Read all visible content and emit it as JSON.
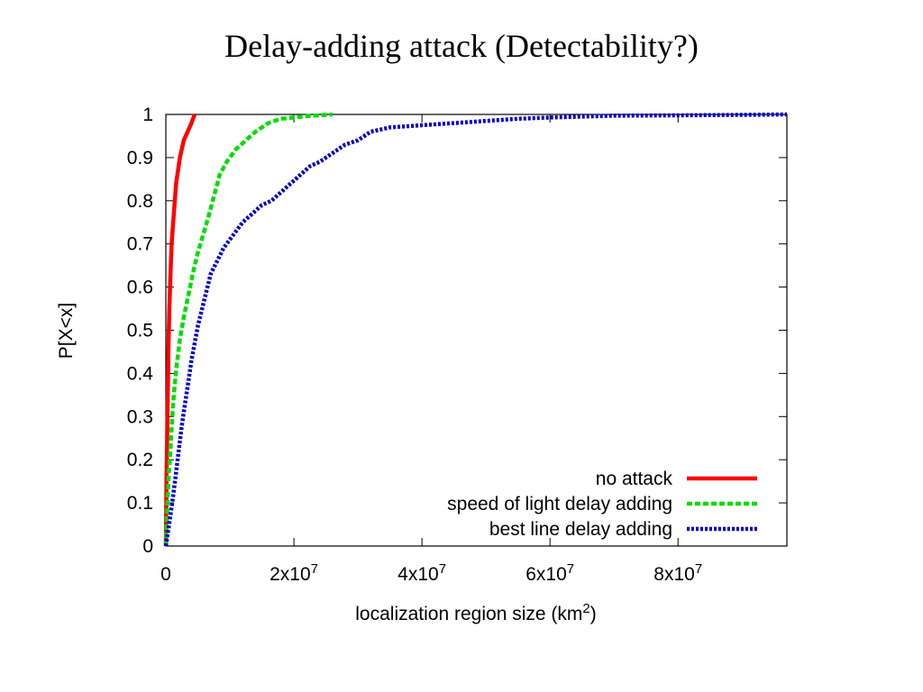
{
  "slide": {
    "title": "Delay-adding attack (Detectability?)"
  },
  "chart_data": {
    "type": "line",
    "title": "",
    "xlabel": "localization region size (km",
    "xlabel_sup": "2",
    "xlabel_tail": ")",
    "ylabel": "P[X<x]",
    "xlim": [
      0,
      97000000
    ],
    "ylim": [
      0,
      1
    ],
    "x_ticks": [
      {
        "value": 0,
        "base": "0",
        "exp": ""
      },
      {
        "value": 20000000,
        "base": "2x10",
        "exp": "7"
      },
      {
        "value": 40000000,
        "base": "4x10",
        "exp": "7"
      },
      {
        "value": 60000000,
        "base": "6x10",
        "exp": "7"
      },
      {
        "value": 80000000,
        "base": "8x10",
        "exp": "7"
      }
    ],
    "y_ticks": [
      {
        "value": 0,
        "label": "0"
      },
      {
        "value": 0.1,
        "label": "0.1"
      },
      {
        "value": 0.2,
        "label": "0.2"
      },
      {
        "value": 0.3,
        "label": "0.3"
      },
      {
        "value": 0.4,
        "label": "0.4"
      },
      {
        "value": 0.5,
        "label": "0.5"
      },
      {
        "value": 0.6,
        "label": "0.6"
      },
      {
        "value": 0.7,
        "label": "0.7"
      },
      {
        "value": 0.8,
        "label": "0.8"
      },
      {
        "value": 0.9,
        "label": "0.9"
      },
      {
        "value": 1,
        "label": "1"
      }
    ],
    "grid": false,
    "legend_position": "bottom-right",
    "series": [
      {
        "name": "no attack",
        "color": "#ff0000",
        "style": "solid",
        "x": [
          0,
          100000,
          250000,
          400000,
          550000,
          700000,
          900000,
          1200000,
          1600000,
          2200000,
          2800000,
          3400000,
          4000000,
          4500000
        ],
        "y": [
          0,
          0.15,
          0.3,
          0.45,
          0.55,
          0.62,
          0.7,
          0.76,
          0.84,
          0.9,
          0.94,
          0.96,
          0.98,
          1.0
        ]
      },
      {
        "name": "speed of light delay adding",
        "color": "#00dd00",
        "style": "dashed",
        "x": [
          0,
          200000,
          400000,
          700000,
          1000000,
          1300000,
          1700000,
          2200000,
          2800000,
          3500000,
          4200000,
          5000000,
          5800000,
          6600000,
          7500000,
          8400000,
          9500000,
          11000000,
          12500000,
          14000000,
          16000000,
          18000000,
          20000000,
          22000000,
          24000000,
          26000000
        ],
        "y": [
          0,
          0.08,
          0.15,
          0.22,
          0.3,
          0.36,
          0.42,
          0.48,
          0.53,
          0.58,
          0.63,
          0.68,
          0.72,
          0.76,
          0.81,
          0.86,
          0.89,
          0.92,
          0.94,
          0.96,
          0.98,
          0.99,
          0.993,
          0.996,
          0.998,
          1.0
        ]
      },
      {
        "name": "best line delay adding",
        "color": "#0000cc",
        "style": "dotted",
        "x": [
          0,
          500000,
          1000000,
          1500000,
          2000000,
          2500000,
          3000000,
          3500000,
          4000000,
          4500000,
          5000000,
          5500000,
          6000000,
          6500000,
          7000000,
          8000000,
          9000000,
          10000000,
          11000000,
          12000000,
          13500000,
          15000000,
          16500000,
          18000000,
          19500000,
          21000000,
          22500000,
          24000000,
          26000000,
          28000000,
          30000000,
          32000000,
          35000000,
          40000000,
          45000000,
          50000000,
          55000000,
          60000000,
          65000000,
          70000000,
          80000000,
          90000000,
          97000000
        ],
        "y": [
          0,
          0.05,
          0.1,
          0.16,
          0.22,
          0.28,
          0.33,
          0.38,
          0.43,
          0.47,
          0.51,
          0.54,
          0.57,
          0.6,
          0.63,
          0.66,
          0.69,
          0.71,
          0.73,
          0.75,
          0.77,
          0.79,
          0.8,
          0.82,
          0.84,
          0.86,
          0.88,
          0.89,
          0.91,
          0.93,
          0.94,
          0.96,
          0.97,
          0.975,
          0.98,
          0.985,
          0.99,
          0.993,
          0.995,
          0.997,
          0.998,
          0.999,
          1.0
        ]
      }
    ]
  }
}
